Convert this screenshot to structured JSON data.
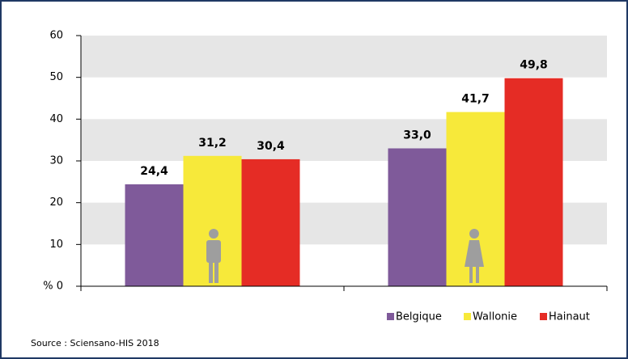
{
  "chart_data": {
    "type": "bar",
    "categories": [
      null,
      null
    ],
    "series": [
      {
        "name": "Belgique",
        "color": "#7f5a9a",
        "values": [
          24.4,
          33.0
        ],
        "value_labels": [
          "24,4",
          "33,0"
        ]
      },
      {
        "name": "Wallonie",
        "color": "#f7e93a",
        "values": [
          31.2,
          41.7
        ],
        "value_labels": [
          "31,2",
          "41,7"
        ]
      },
      {
        "name": "Hainaut",
        "color": "#e52c25",
        "values": [
          30.4,
          49.8
        ],
        "value_labels": [
          "30,4",
          "49,8"
        ]
      }
    ],
    "ylim": [
      0,
      60
    ],
    "yticks": [
      {
        "value": 0,
        "label": "% 0"
      },
      10,
      20,
      30,
      40,
      50,
      60
    ],
    "grid": "bands",
    "legend": "bottom-right",
    "source": "Source : Sciensano-HIS 2018"
  }
}
